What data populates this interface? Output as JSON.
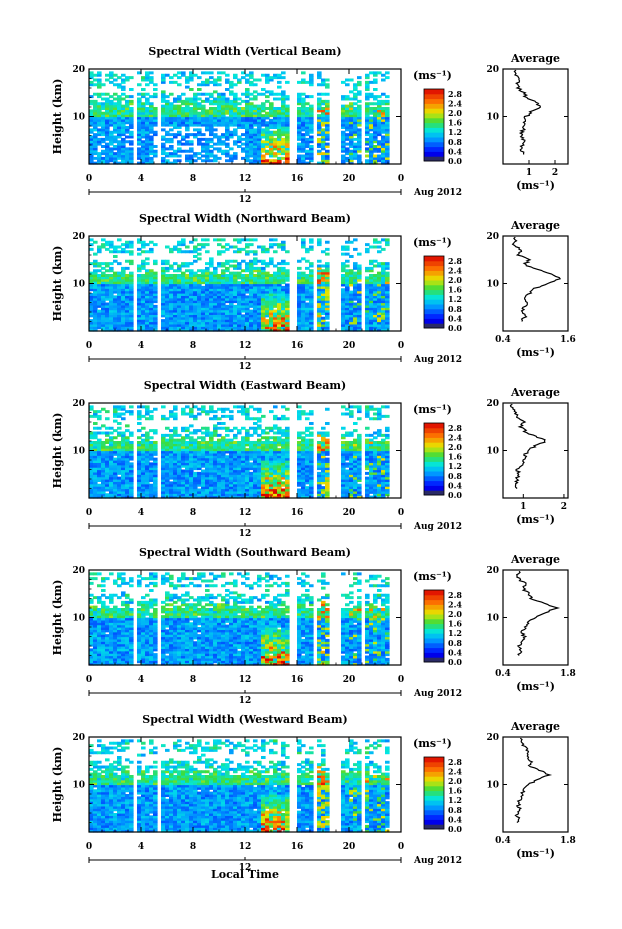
{
  "figure": {
    "xlabel_bottom": "Local Time",
    "date_label": "Aug 2012",
    "day_label": "12",
    "ylabel": "Height (km)",
    "unit_label": "(ms⁻¹)",
    "average_title": "Average",
    "average_xlabel": "(ms⁻¹)"
  },
  "chart_data": [
    {
      "type": "heatmap",
      "title": "Spectral Width (Vertical Beam)",
      "x_ticks": [
        "0",
        "4",
        "8",
        "12",
        "16",
        "20",
        "0"
      ],
      "xlim": [
        0,
        24
      ],
      "y_ticks": [
        "20",
        "10"
      ],
      "ylim": [
        0,
        20
      ],
      "colorbar_ticks": [
        "2.8",
        "2.4",
        "2.0",
        "1.6",
        "1.2",
        "0.8",
        "0.4",
        "0.0"
      ],
      "colorbar_range": [
        0,
        3.0
      ],
      "data_gaps_hours": [
        [
          3.5,
          3.8
        ],
        [
          5.2,
          5.5
        ],
        [
          15.4,
          15.9
        ],
        [
          17.1,
          17.4
        ],
        [
          18.5,
          19.4
        ],
        [
          20.8,
          21.1
        ]
      ],
      "average": {
        "title": "Average",
        "x_ticks": [
          "1",
          "2"
        ],
        "xlim": [
          0,
          2.5
        ],
        "y_ticks": [
          "20",
          "10"
        ],
        "heights": [
          2,
          3,
          4,
          5,
          6,
          7,
          8,
          9,
          10,
          11,
          12,
          13,
          14,
          15,
          16,
          17,
          18,
          19,
          20
        ],
        "values": [
          0.8,
          0.7,
          0.75,
          0.8,
          0.7,
          0.75,
          0.85,
          0.8,
          0.9,
          1.1,
          1.4,
          1.3,
          0.9,
          0.8,
          0.6,
          0.55,
          0.6,
          0.5,
          0.45
        ]
      }
    },
    {
      "type": "heatmap",
      "title": "Spectral Width (Northward Beam)",
      "x_ticks": [
        "0",
        "4",
        "8",
        "12",
        "16",
        "20",
        "0"
      ],
      "xlim": [
        0,
        24
      ],
      "y_ticks": [
        "20",
        "10"
      ],
      "ylim": [
        0,
        20
      ],
      "colorbar_ticks": [
        "2.8",
        "2.4",
        "2.0",
        "1.6",
        "1.2",
        "0.8",
        "0.4",
        "0.0"
      ],
      "colorbar_range": [
        0,
        3.0
      ],
      "data_gaps_hours": [
        [
          3.5,
          3.8
        ],
        [
          5.2,
          5.5
        ],
        [
          15.4,
          15.9
        ],
        [
          17.1,
          17.4
        ],
        [
          18.5,
          19.4
        ],
        [
          20.8,
          21.1
        ]
      ],
      "average": {
        "title": "Average",
        "x_ticks": [
          "0.4",
          "1.6"
        ],
        "xlim": [
          0.4,
          1.6
        ],
        "y_ticks": [
          "20",
          "10"
        ],
        "heights": [
          2,
          3,
          4,
          5,
          6,
          7,
          8,
          9,
          10,
          11,
          12,
          13,
          14,
          15,
          16,
          17,
          18,
          19,
          20
        ],
        "values": [
          0.75,
          0.8,
          0.75,
          0.8,
          0.85,
          0.8,
          0.9,
          1.0,
          1.2,
          1.45,
          1.3,
          1.0,
          0.8,
          0.9,
          0.7,
          0.75,
          0.6,
          0.65,
          0.6
        ]
      }
    },
    {
      "type": "heatmap",
      "title": "Spectral Width (Eastward Beam)",
      "x_ticks": [
        "0",
        "4",
        "8",
        "12",
        "16",
        "20",
        "0"
      ],
      "xlim": [
        0,
        24
      ],
      "y_ticks": [
        "20",
        "10"
      ],
      "ylim": [
        0,
        20
      ],
      "colorbar_ticks": [
        "2.8",
        "2.4",
        "2.0",
        "1.6",
        "1.2",
        "0.8",
        "0.4",
        "0.0"
      ],
      "colorbar_range": [
        0,
        3.0
      ],
      "data_gaps_hours": [
        [
          3.5,
          3.8
        ],
        [
          5.2,
          5.5
        ],
        [
          15.4,
          15.9
        ],
        [
          17.1,
          17.4
        ],
        [
          18.5,
          19.4
        ],
        [
          20.8,
          21.1
        ]
      ],
      "average": {
        "title": "Average",
        "x_ticks": [
          "1",
          "2"
        ],
        "xlim": [
          0.5,
          2.1
        ],
        "y_ticks": [
          "20",
          "10"
        ],
        "heights": [
          2,
          3,
          4,
          5,
          6,
          7,
          8,
          9,
          10,
          11,
          12,
          13,
          14,
          15,
          16,
          17,
          18,
          19,
          20
        ],
        "values": [
          0.85,
          0.8,
          0.85,
          0.9,
          0.85,
          0.95,
          1.0,
          1.05,
          1.1,
          1.3,
          1.55,
          1.3,
          1.05,
          0.95,
          1.0,
          0.85,
          0.8,
          0.75,
          0.7
        ]
      }
    },
    {
      "type": "heatmap",
      "title": "Spectral Width (Southward Beam)",
      "x_ticks": [
        "0",
        "4",
        "8",
        "12",
        "16",
        "20",
        "0"
      ],
      "xlim": [
        0,
        24
      ],
      "y_ticks": [
        "20",
        "10"
      ],
      "ylim": [
        0,
        20
      ],
      "colorbar_ticks": [
        "2.8",
        "2.4",
        "2.0",
        "1.6",
        "1.2",
        "0.8",
        "0.4",
        "0.0"
      ],
      "colorbar_range": [
        0,
        3.0
      ],
      "data_gaps_hours": [
        [
          3.5,
          3.8
        ],
        [
          5.2,
          5.5
        ],
        [
          15.4,
          15.9
        ],
        [
          17.1,
          17.4
        ],
        [
          18.5,
          19.4
        ],
        [
          20.8,
          21.1
        ]
      ],
      "average": {
        "title": "Average",
        "x_ticks": [
          "0.4",
          "1.8"
        ],
        "xlim": [
          0.4,
          1.8
        ],
        "y_ticks": [
          "20",
          "10"
        ],
        "heights": [
          2,
          3,
          4,
          5,
          6,
          7,
          8,
          9,
          10,
          11,
          12,
          13,
          14,
          15,
          16,
          17,
          18,
          19,
          20
        ],
        "values": [
          0.75,
          0.8,
          0.75,
          0.8,
          0.85,
          0.8,
          0.9,
          0.95,
          1.1,
          1.3,
          1.55,
          1.3,
          1.0,
          0.95,
          0.85,
          0.9,
          0.75,
          0.7,
          0.75
        ]
      }
    },
    {
      "type": "heatmap",
      "title": "Spectral Width (Westward Beam)",
      "x_ticks": [
        "0",
        "4",
        "8",
        "12",
        "16",
        "20",
        "0"
      ],
      "xlim": [
        0,
        24
      ],
      "y_ticks": [
        "20",
        "10"
      ],
      "ylim": [
        0,
        20
      ],
      "colorbar_ticks": [
        "2.8",
        "2.4",
        "2.0",
        "1.6",
        "1.2",
        "0.8",
        "0.4",
        "0.0"
      ],
      "colorbar_range": [
        0,
        3.0
      ],
      "data_gaps_hours": [
        [
          3.5,
          3.8
        ],
        [
          5.2,
          5.5
        ],
        [
          15.4,
          15.9
        ],
        [
          17.1,
          17.4
        ],
        [
          18.5,
          19.4
        ],
        [
          20.8,
          21.1
        ]
      ],
      "average": {
        "title": "Average",
        "x_ticks": [
          "0.4",
          "1.8"
        ],
        "xlim": [
          0.4,
          1.8
        ],
        "y_ticks": [
          "20",
          "10"
        ],
        "heights": [
          2,
          3,
          4,
          5,
          6,
          7,
          8,
          9,
          10,
          11,
          12,
          13,
          14,
          15,
          16,
          17,
          18,
          19,
          20
        ],
        "values": [
          0.7,
          0.72,
          0.7,
          0.75,
          0.72,
          0.78,
          0.8,
          0.85,
          0.95,
          1.15,
          1.4,
          1.2,
          0.95,
          1.0,
          0.9,
          0.95,
          0.85,
          0.8,
          0.75
        ]
      }
    }
  ]
}
